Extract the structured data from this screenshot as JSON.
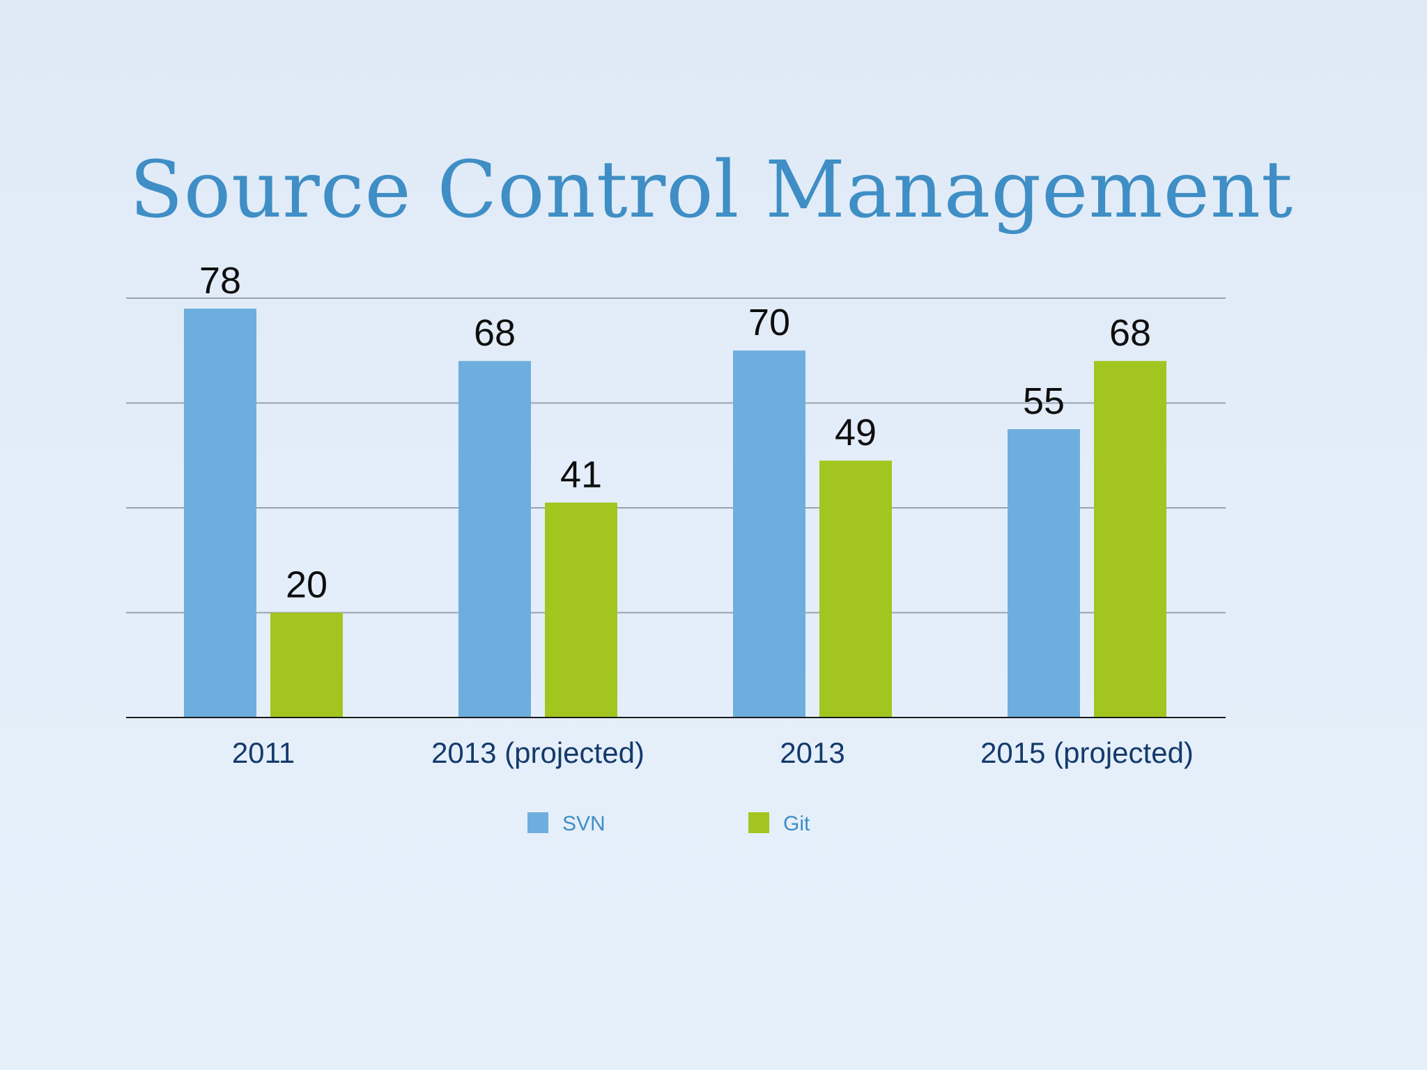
{
  "chart_data": {
    "type": "bar",
    "title": "Source Control Management",
    "xlabel": "",
    "ylabel": "",
    "ylim": [
      0,
      80
    ],
    "grid": true,
    "legend_position": "bottom",
    "categories": [
      "2011",
      "2013 (projected)",
      "2013",
      "2015 (projected)"
    ],
    "series": [
      {
        "name": "SVN",
        "color": "#6eaede",
        "values": [
          78,
          68,
          70,
          55
        ]
      },
      {
        "name": "Git",
        "color": "#a2c520",
        "values": [
          20,
          41,
          49,
          68
        ]
      }
    ]
  }
}
